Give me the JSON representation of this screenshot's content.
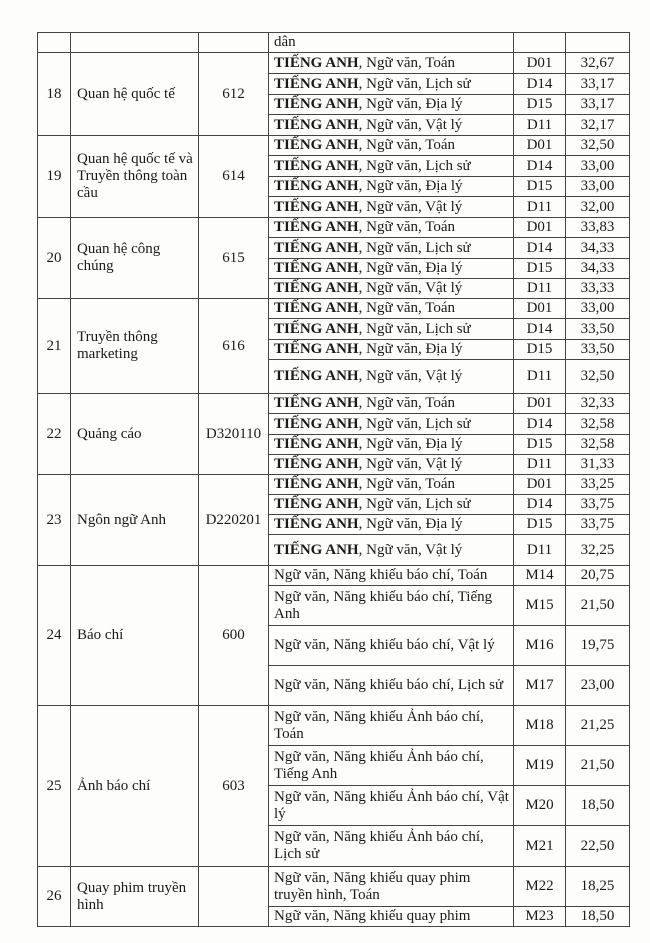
{
  "top_row": {
    "subjects": "dân"
  },
  "groups": [
    {
      "stt": "18",
      "name": "Quan hệ quốc tế",
      "code": "612",
      "rows": [
        {
          "bold": "TIẾNG ANH",
          "rest": ", Ngữ văn, Toán",
          "block": "D01",
          "score": "32,67",
          "h": 21
        },
        {
          "bold": "TIẾNG ANH",
          "rest": ", Ngữ văn, Lịch sử",
          "block": "D14",
          "score": "33,17",
          "h": 21
        },
        {
          "bold": "TIẾNG ANH",
          "rest": ", Ngữ văn, Địa lý",
          "block": "D15",
          "score": "33,17",
          "h": 20
        },
        {
          "bold": "TIẾNG ANH",
          "rest": ", Ngữ văn, Vật lý",
          "block": "D11",
          "score": "32,17",
          "h": 21
        }
      ]
    },
    {
      "stt": "19",
      "name": "Quan hệ quốc tế và Truyền thông toàn cầu",
      "code": "614",
      "rows": [
        {
          "bold": "TIẾNG ANH",
          "rest": ", Ngữ văn, Toán",
          "block": "D01",
          "score": "32,50",
          "h": 20
        },
        {
          "bold": "TIẾNG ANH",
          "rest": ", Ngữ văn, Lịch sử",
          "block": "D14",
          "score": "33,00",
          "h": 21
        },
        {
          "bold": "TIẾNG ANH",
          "rest": ", Ngữ văn, Địa lý",
          "block": "D15",
          "score": "33,00",
          "h": 20
        },
        {
          "bold": "TIẾNG ANH",
          "rest": ", Ngữ văn, Vật lý",
          "block": "D11",
          "score": "32,00",
          "h": 21
        }
      ]
    },
    {
      "stt": "20",
      "name": "Quan hệ công chúng",
      "code": "615",
      "rows": [
        {
          "bold": "TIẾNG ANH",
          "rest": ", Ngữ văn, Toán",
          "block": "D01",
          "score": "33,83",
          "h": 20
        },
        {
          "bold": "TIẾNG ANH",
          "rest": ", Ngữ văn, Lịch sử",
          "block": "D14",
          "score": "34,33",
          "h": 21
        },
        {
          "bold": "TIẾNG ANH",
          "rest": ", Ngữ văn, Địa lý",
          "block": "D15",
          "score": "34,33",
          "h": 20
        },
        {
          "bold": "TIẾNG ANH",
          "rest": ", Ngữ văn, Vật lý",
          "block": "D11",
          "score": "33,33",
          "h": 20
        }
      ]
    },
    {
      "stt": "21",
      "name": "Truyền thông marketing",
      "code": "616",
      "rows": [
        {
          "bold": "TIẾNG ANH",
          "rest": ", Ngữ văn, Toán",
          "block": "D01",
          "score": "33,00",
          "h": 20
        },
        {
          "bold": "TIẾNG ANH",
          "rest": ", Ngữ văn, Lịch sử",
          "block": "D14",
          "score": "33,50",
          "h": 21
        },
        {
          "bold": "TIẾNG ANH",
          "rest": ", Ngữ văn, Địa lý",
          "block": "D15",
          "score": "33,50",
          "h": 20
        },
        {
          "bold": "TIẾNG ANH",
          "rest": ", Ngữ văn, Vật lý",
          "block": "D11",
          "score": "32,50",
          "h": 34
        }
      ]
    },
    {
      "stt": "22",
      "name": "Quảng cáo",
      "code": "D320110",
      "rows": [
        {
          "bold": "TIẾNG ANH",
          "rest": ", Ngữ văn, Toán",
          "block": "D01",
          "score": "32,33",
          "h": 20
        },
        {
          "bold": "TIẾNG ANH",
          "rest": ", Ngữ văn, Lịch sử",
          "block": "D14",
          "score": "32,58",
          "h": 21
        },
        {
          "bold": "TIẾNG ANH",
          "rest": ", Ngữ văn, Địa lý",
          "block": "D15",
          "score": "32,58",
          "h": 20
        },
        {
          "bold": "TIẾNG ANH",
          "rest": ", Ngữ văn, Vật lý",
          "block": "D11",
          "score": "31,33",
          "h": 20
        }
      ]
    },
    {
      "stt": "23",
      "name": "Ngôn ngữ Anh",
      "code": "D220201",
      "rows": [
        {
          "bold": "TIẾNG ANH",
          "rest": ", Ngữ văn, Toán",
          "block": "D01",
          "score": "33,25",
          "h": 20
        },
        {
          "bold": "TIẾNG ANH",
          "rest": ", Ngữ văn, Lịch sử",
          "block": "D14",
          "score": "33,75",
          "h": 20
        },
        {
          "bold": "TIẾNG ANH",
          "rest": ", Ngữ văn, Địa lý",
          "block": "D15",
          "score": "33,75",
          "h": 20
        },
        {
          "bold": "TIẾNG ANH",
          "rest": ", Ngữ văn, Vật lý",
          "block": "D11",
          "score": "32,25",
          "h": 31
        }
      ]
    },
    {
      "stt": "24",
      "name": "Báo chí",
      "code": "600",
      "rows": [
        {
          "bold": "",
          "rest": "Ngữ văn, Năng khiếu báo chí, Toán",
          "block": "M14",
          "score": "20,75",
          "h": 20
        },
        {
          "bold": "",
          "rest": "Ngữ văn, Năng khiếu báo chí, Tiếng Anh",
          "block": "M15",
          "score": "21,50",
          "h": 40
        },
        {
          "bold": "",
          "rest": "Ngữ văn, Năng khiếu báo chí, Vật lý",
          "block": "M16",
          "score": "19,75",
          "h": 40
        },
        {
          "bold": "",
          "rest": "Ngữ văn, Năng khiếu báo chí, Lịch sử",
          "block": "M17",
          "score": "23,00",
          "h": 40
        }
      ]
    },
    {
      "stt": "25",
      "name": "Ảnh báo chí",
      "code": "603",
      "rows": [
        {
          "bold": "",
          "rest": "Ngữ văn, Năng khiếu Ảnh báo chí, Toán",
          "block": "M18",
          "score": "21,25",
          "h": 40
        },
        {
          "bold": "",
          "rest": "Ngữ văn, Năng khiếu Ảnh báo chí, Tiếng Anh",
          "block": "M19",
          "score": "21,50",
          "h": 40
        },
        {
          "bold": "",
          "rest": "Ngữ văn, Năng khiếu Ảnh báo chí, Vật lý",
          "block": "M20",
          "score": "18,50",
          "h": 40
        },
        {
          "bold": "",
          "rest": "Ngữ văn, Năng khiếu Ảnh báo chí, Lịch sử",
          "block": "M21",
          "score": "22,50",
          "h": 41
        }
      ]
    },
    {
      "stt": "26",
      "name": "Quay phim truyền hình",
      "code": "",
      "rows": [
        {
          "bold": "",
          "rest": "Ngữ văn, Năng khiếu quay phim truyền hình, Toán",
          "block": "M22",
          "score": "18,25",
          "h": 40
        },
        {
          "bold": "",
          "rest": "Ngữ văn, Năng khiếu quay phim",
          "block": "M23",
          "score": "18,50",
          "h": 20
        }
      ]
    }
  ]
}
